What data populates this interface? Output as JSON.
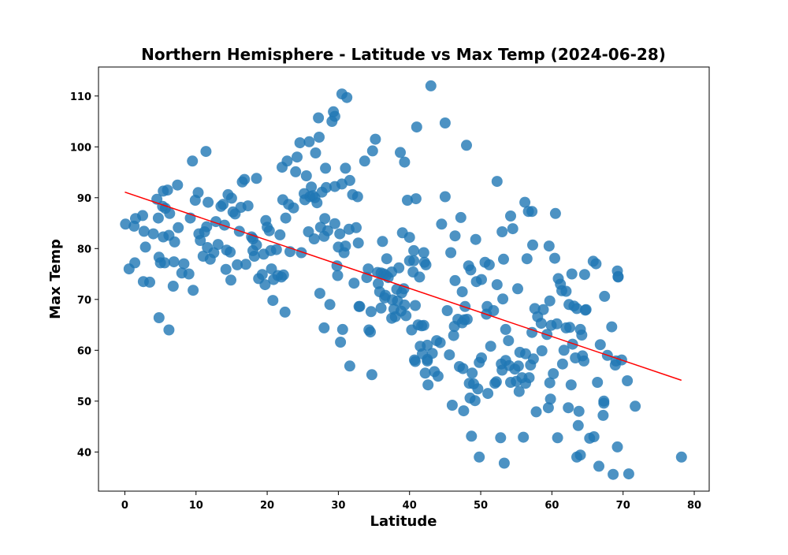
{
  "chart_data": {
    "type": "scatter",
    "title": "Northern Hemisphere - Latitude vs Max Temp (2024-06-28)",
    "xlabel": "Latitude",
    "ylabel": "Max Temp",
    "xlim": [
      -3.7,
      82.1
    ],
    "ylim": [
      32.3,
      115.7
    ],
    "xticks": [
      "0",
      "10",
      "20",
      "30",
      "40",
      "50",
      "60",
      "70",
      "80"
    ],
    "yticks": [
      "40",
      "50",
      "60",
      "70",
      "80",
      "90",
      "100",
      "110"
    ],
    "grid": false,
    "legend": "none",
    "marker_color": "#1f77b4",
    "line_color": "#ff0000",
    "regression": {
      "x": [
        0,
        78.2
      ],
      "y": [
        91.1,
        54.1
      ]
    },
    "points": [
      [
        0.1,
        84.8
      ],
      [
        0.6,
        76.0
      ],
      [
        1.3,
        84.4
      ],
      [
        1.4,
        77.2
      ],
      [
        1.5,
        85.9
      ],
      [
        2.5,
        86.5
      ],
      [
        2.6,
        73.5
      ],
      [
        2.7,
        83.4
      ],
      [
        2.9,
        80.3
      ],
      [
        3.5,
        73.4
      ],
      [
        4.0,
        82.9
      ],
      [
        4.5,
        89.7
      ],
      [
        4.7,
        86.0
      ],
      [
        4.8,
        78.3
      ],
      [
        4.8,
        66.4
      ],
      [
        5.0,
        77.2
      ],
      [
        5.3,
        88.3
      ],
      [
        5.4,
        82.3
      ],
      [
        5.4,
        91.3
      ],
      [
        5.6,
        77.2
      ],
      [
        5.7,
        87.9
      ],
      [
        6.0,
        91.5
      ],
      [
        6.2,
        82.6
      ],
      [
        6.3,
        86.9
      ],
      [
        6.2,
        64.0
      ],
      [
        6.8,
        72.6
      ],
      [
        6.9,
        77.4
      ],
      [
        7.0,
        81.3
      ],
      [
        7.4,
        92.5
      ],
      [
        7.5,
        84.1
      ],
      [
        8.0,
        75.2
      ],
      [
        8.3,
        77.0
      ],
      [
        9.0,
        75.0
      ],
      [
        9.2,
        86.0
      ],
      [
        9.5,
        97.2
      ],
      [
        9.6,
        71.8
      ],
      [
        9.9,
        89.5
      ],
      [
        10.3,
        91.0
      ],
      [
        10.4,
        82.9
      ],
      [
        10.6,
        81.6
      ],
      [
        11.0,
        78.5
      ],
      [
        11.2,
        83.3
      ],
      [
        11.4,
        99.1
      ],
      [
        11.5,
        84.3
      ],
      [
        11.6,
        80.2
      ],
      [
        11.7,
        89.1
      ],
      [
        12.0,
        77.9
      ],
      [
        12.5,
        79.2
      ],
      [
        12.8,
        85.3
      ],
      [
        13.1,
        80.8
      ],
      [
        13.5,
        88.3
      ],
      [
        13.8,
        88.7
      ],
      [
        14.0,
        84.6
      ],
      [
        14.2,
        75.9
      ],
      [
        14.3,
        79.7
      ],
      [
        14.5,
        90.6
      ],
      [
        14.8,
        79.3
      ],
      [
        14.9,
        73.8
      ],
      [
        15.0,
        89.9
      ],
      [
        15.2,
        87.2
      ],
      [
        15.5,
        86.8
      ],
      [
        15.8,
        76.8
      ],
      [
        16.1,
        83.4
      ],
      [
        16.3,
        88.1
      ],
      [
        16.5,
        93.1
      ],
      [
        16.8,
        93.6
      ],
      [
        17.0,
        76.9
      ],
      [
        17.3,
        88.4
      ],
      [
        17.8,
        82.3
      ],
      [
        18.0,
        79.6
      ],
      [
        18.0,
        81.9
      ],
      [
        18.2,
        78.5
      ],
      [
        18.5,
        93.8
      ],
      [
        18.5,
        80.7
      ],
      [
        18.8,
        74.1
      ],
      [
        19.3,
        74.9
      ],
      [
        19.5,
        78.9
      ],
      [
        19.7,
        72.9
      ],
      [
        19.8,
        85.5
      ],
      [
        20.0,
        84.2
      ],
      [
        20.3,
        83.5
      ],
      [
        20.5,
        79.6
      ],
      [
        20.6,
        76.0
      ],
      [
        20.8,
        69.8
      ],
      [
        20.9,
        73.9
      ],
      [
        21.3,
        79.8
      ],
      [
        21.5,
        74.7
      ],
      [
        21.8,
        82.7
      ],
      [
        22.0,
        74.4
      ],
      [
        22.1,
        96.0
      ],
      [
        22.2,
        89.6
      ],
      [
        22.3,
        74.8
      ],
      [
        22.5,
        67.5
      ],
      [
        22.6,
        86.0
      ],
      [
        22.8,
        97.2
      ],
      [
        23.0,
        88.7
      ],
      [
        23.2,
        79.4
      ],
      [
        23.7,
        88.0
      ],
      [
        24.0,
        95.1
      ],
      [
        24.2,
        98.0
      ],
      [
        24.6,
        100.8
      ],
      [
        24.8,
        79.2
      ],
      [
        25.2,
        90.8
      ],
      [
        25.3,
        89.6
      ],
      [
        25.5,
        94.3
      ],
      [
        25.8,
        83.3
      ],
      [
        25.9,
        101.0
      ],
      [
        26.0,
        90.2
      ],
      [
        26.2,
        92.1
      ],
      [
        26.4,
        90.4
      ],
      [
        26.6,
        81.9
      ],
      [
        26.7,
        90.0
      ],
      [
        26.8,
        98.8
      ],
      [
        27.0,
        89.0
      ],
      [
        27.2,
        105.7
      ],
      [
        27.3,
        101.9
      ],
      [
        27.4,
        71.2
      ],
      [
        27.5,
        84.2
      ],
      [
        27.7,
        91.1
      ],
      [
        28.0,
        64.4
      ],
      [
        28.0,
        82.4
      ],
      [
        28.1,
        85.9
      ],
      [
        28.2,
        95.8
      ],
      [
        28.3,
        92.0
      ],
      [
        28.5,
        83.5
      ],
      [
        28.8,
        69.0
      ],
      [
        29.1,
        105.0
      ],
      [
        29.3,
        106.9
      ],
      [
        29.5,
        106.0
      ],
      [
        29.5,
        84.9
      ],
      [
        29.5,
        92.2
      ],
      [
        29.8,
        76.6
      ],
      [
        29.9,
        74.7
      ],
      [
        30.0,
        80.3
      ],
      [
        30.2,
        82.9
      ],
      [
        30.3,
        61.6
      ],
      [
        30.5,
        92.7
      ],
      [
        30.5,
        110.4
      ],
      [
        30.6,
        64.1
      ],
      [
        30.8,
        79.2
      ],
      [
        31.0,
        95.8
      ],
      [
        31.0,
        80.5
      ],
      [
        31.2,
        109.7
      ],
      [
        31.5,
        83.8
      ],
      [
        31.6,
        56.9
      ],
      [
        31.6,
        93.4
      ],
      [
        32.0,
        90.6
      ],
      [
        32.2,
        73.2
      ],
      [
        32.5,
        84.1
      ],
      [
        32.7,
        90.2
      ],
      [
        32.8,
        81.1
      ],
      [
        32.9,
        68.6
      ],
      [
        33.0,
        68.6
      ],
      [
        33.7,
        97.2
      ],
      [
        34.0,
        74.3
      ],
      [
        34.2,
        76.0
      ],
      [
        34.3,
        64.0
      ],
      [
        34.5,
        63.6
      ],
      [
        34.6,
        67.6
      ],
      [
        34.7,
        55.2
      ],
      [
        34.8,
        99.2
      ],
      [
        35.2,
        101.5
      ],
      [
        35.5,
        75.3
      ],
      [
        35.6,
        73.1
      ],
      [
        35.8,
        71.5
      ],
      [
        36.0,
        75.2
      ],
      [
        36.0,
        68.3
      ],
      [
        36.2,
        81.4
      ],
      [
        36.4,
        75.0
      ],
      [
        36.5,
        70.3
      ],
      [
        36.6,
        70.8
      ],
      [
        36.7,
        74.7
      ],
      [
        36.8,
        78.0
      ],
      [
        37.0,
        74.3
      ],
      [
        37.5,
        66.3
      ],
      [
        37.5,
        75.4
      ],
      [
        37.6,
        69.9
      ],
      [
        37.8,
        68.1
      ],
      [
        38.0,
        66.6
      ],
      [
        38.2,
        72.0
      ],
      [
        38.3,
        69.7
      ],
      [
        38.5,
        76.2
      ],
      [
        38.7,
        98.9
      ],
      [
        38.8,
        67.7
      ],
      [
        38.9,
        71.3
      ],
      [
        39.0,
        83.1
      ],
      [
        39.2,
        72.1
      ],
      [
        39.3,
        68.9
      ],
      [
        39.5,
        66.8
      ],
      [
        39.3,
        97.0
      ],
      [
        39.7,
        89.5
      ],
      [
        40.0,
        77.6
      ],
      [
        40.0,
        82.2
      ],
      [
        40.3,
        64.0
      ],
      [
        40.5,
        75.4
      ],
      [
        40.6,
        77.6
      ],
      [
        40.6,
        79.6
      ],
      [
        40.7,
        58.1
      ],
      [
        40.8,
        57.8
      ],
      [
        40.8,
        68.8
      ],
      [
        40.9,
        89.8
      ],
      [
        41.0,
        103.9
      ],
      [
        41.2,
        65.0
      ],
      [
        41.4,
        74.4
      ],
      [
        41.5,
        60.8
      ],
      [
        41.7,
        64.8
      ],
      [
        41.8,
        59.3
      ],
      [
        42.0,
        79.2
      ],
      [
        42.0,
        64.9
      ],
      [
        42.1,
        77.3
      ],
      [
        42.2,
        55.5
      ],
      [
        42.3,
        76.8
      ],
      [
        42.5,
        57.9
      ],
      [
        42.5,
        58.2
      ],
      [
        42.5,
        61.0
      ],
      [
        42.6,
        53.2
      ],
      [
        43.0,
        112.0
      ],
      [
        43.2,
        59.4
      ],
      [
        43.5,
        55.8
      ],
      [
        43.8,
        61.9
      ],
      [
        44.0,
        54.9
      ],
      [
        44.3,
        61.5
      ],
      [
        44.5,
        84.8
      ],
      [
        45.0,
        104.7
      ],
      [
        45.0,
        90.2
      ],
      [
        45.3,
        67.8
      ],
      [
        45.6,
        59.1
      ],
      [
        45.8,
        79.2
      ],
      [
        46.0,
        49.2
      ],
      [
        46.2,
        62.9
      ],
      [
        46.3,
        64.7
      ],
      [
        46.4,
        73.7
      ],
      [
        46.4,
        82.5
      ],
      [
        46.8,
        66.1
      ],
      [
        47.0,
        56.8
      ],
      [
        47.2,
        86.1
      ],
      [
        47.4,
        71.5
      ],
      [
        47.4,
        65.4
      ],
      [
        47.5,
        56.4
      ],
      [
        47.6,
        48.1
      ],
      [
        47.7,
        66.0
      ],
      [
        47.8,
        68.6
      ],
      [
        48.0,
        100.3
      ],
      [
        48.1,
        66.1
      ],
      [
        48.3,
        76.6
      ],
      [
        48.4,
        53.5
      ],
      [
        48.5,
        50.6
      ],
      [
        48.6,
        75.8
      ],
      [
        48.7,
        43.1
      ],
      [
        48.8,
        55.5
      ],
      [
        49.0,
        53.4
      ],
      [
        49.2,
        50.1
      ],
      [
        49.3,
        81.8
      ],
      [
        49.4,
        73.5
      ],
      [
        49.6,
        52.4
      ],
      [
        49.8,
        39.0
      ],
      [
        49.8,
        57.6
      ],
      [
        50.1,
        73.9
      ],
      [
        50.1,
        58.5
      ],
      [
        50.6,
        77.3
      ],
      [
        50.8,
        67.1
      ],
      [
        50.9,
        68.6
      ],
      [
        51.0,
        51.5
      ],
      [
        51.2,
        76.8
      ],
      [
        51.4,
        60.8
      ],
      [
        51.8,
        67.8
      ],
      [
        52.0,
        53.5
      ],
      [
        52.2,
        53.8
      ],
      [
        52.3,
        93.2
      ],
      [
        52.3,
        72.9
      ],
      [
        52.8,
        42.8
      ],
      [
        52.9,
        57.3
      ],
      [
        53.0,
        83.3
      ],
      [
        53.0,
        56.1
      ],
      [
        53.1,
        70.1
      ],
      [
        53.2,
        77.9
      ],
      [
        53.3,
        37.8
      ],
      [
        53.5,
        58.0
      ],
      [
        53.5,
        64.1
      ],
      [
        53.9,
        61.9
      ],
      [
        54.0,
        57.0
      ],
      [
        54.2,
        86.4
      ],
      [
        54.2,
        53.7
      ],
      [
        54.5,
        83.9
      ],
      [
        54.8,
        56.3
      ],
      [
        55.0,
        53.9
      ],
      [
        55.2,
        72.1
      ],
      [
        55.3,
        56.9
      ],
      [
        55.4,
        51.9
      ],
      [
        55.5,
        59.6
      ],
      [
        55.8,
        54.6
      ],
      [
        56.0,
        42.9
      ],
      [
        56.2,
        89.1
      ],
      [
        56.3,
        59.3
      ],
      [
        56.3,
        53.5
      ],
      [
        56.5,
        78.0
      ],
      [
        56.7,
        87.3
      ],
      [
        56.8,
        54.6
      ],
      [
        57.0,
        57.1
      ],
      [
        57.2,
        63.5
      ],
      [
        57.2,
        87.3
      ],
      [
        57.3,
        80.7
      ],
      [
        57.4,
        58.3
      ],
      [
        57.6,
        68.2
      ],
      [
        57.8,
        47.9
      ],
      [
        58.0,
        66.6
      ],
      [
        58.5,
        65.3
      ],
      [
        58.6,
        59.9
      ],
      [
        58.8,
        68.0
      ],
      [
        59.3,
        63.1
      ],
      [
        59.5,
        48.7
      ],
      [
        59.6,
        80.5
      ],
      [
        59.7,
        69.7
      ],
      [
        59.7,
        53.6
      ],
      [
        59.8,
        50.4
      ],
      [
        59.9,
        64.9
      ],
      [
        60.2,
        55.4
      ],
      [
        60.4,
        78.1
      ],
      [
        60.5,
        86.9
      ],
      [
        60.7,
        65.2
      ],
      [
        60.8,
        42.8
      ],
      [
        60.9,
        74.1
      ],
      [
        61.2,
        73.0
      ],
      [
        61.4,
        71.7
      ],
      [
        61.5,
        57.3
      ],
      [
        61.7,
        60.0
      ],
      [
        62.0,
        71.6
      ],
      [
        62.0,
        64.4
      ],
      [
        62.3,
        48.7
      ],
      [
        62.4,
        69.0
      ],
      [
        62.5,
        64.5
      ],
      [
        62.7,
        53.2
      ],
      [
        62.9,
        61.2
      ],
      [
        62.8,
        75.0
      ],
      [
        63.1,
        68.7
      ],
      [
        63.3,
        58.5
      ],
      [
        63.5,
        68.2
      ],
      [
        63.5,
        39.0
      ],
      [
        63.7,
        45.2
      ],
      [
        63.8,
        48.0
      ],
      [
        64.0,
        39.4
      ],
      [
        64.0,
        64.1
      ],
      [
        64.2,
        63.0
      ],
      [
        64.3,
        58.9
      ],
      [
        64.5,
        57.9
      ],
      [
        64.6,
        74.9
      ],
      [
        64.7,
        67.9
      ],
      [
        64.8,
        68.0
      ],
      [
        65.3,
        42.7
      ],
      [
        65.8,
        77.5
      ],
      [
        65.9,
        43.0
      ],
      [
        66.2,
        77.0
      ],
      [
        66.4,
        53.7
      ],
      [
        66.6,
        37.2
      ],
      [
        66.8,
        61.1
      ],
      [
        67.2,
        47.2
      ],
      [
        67.3,
        50.0
      ],
      [
        67.3,
        49.6
      ],
      [
        67.4,
        70.6
      ],
      [
        67.8,
        59.0
      ],
      [
        68.4,
        64.6
      ],
      [
        68.6,
        35.6
      ],
      [
        68.9,
        57.1
      ],
      [
        69.0,
        57.9
      ],
      [
        69.2,
        41.0
      ],
      [
        69.2,
        75.6
      ],
      [
        69.3,
        74.5
      ],
      [
        69.3,
        74.4
      ],
      [
        69.8,
        58.1
      ],
      [
        70.6,
        54.0
      ],
      [
        70.8,
        35.7
      ],
      [
        71.7,
        49.0
      ],
      [
        78.2,
        39.0
      ]
    ]
  }
}
